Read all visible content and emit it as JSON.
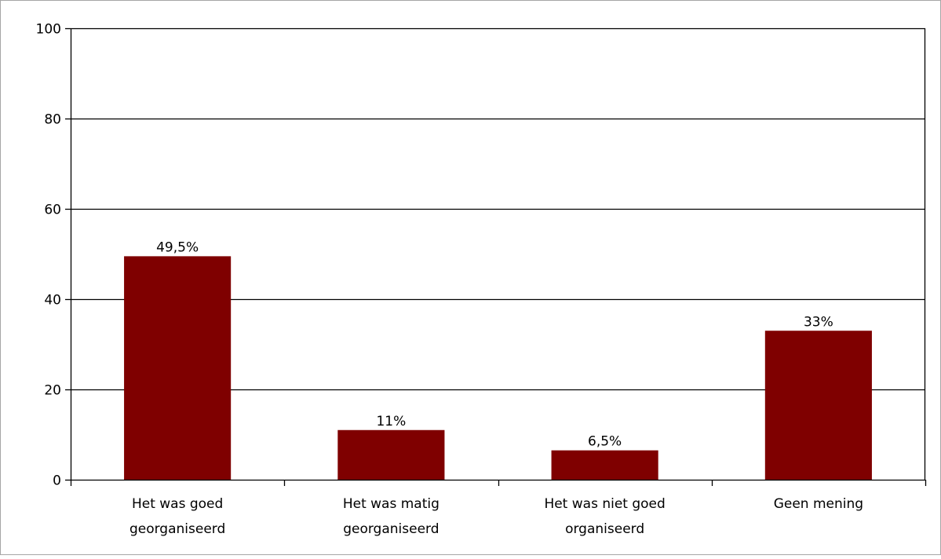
{
  "chart_data": {
    "type": "bar",
    "categories": [
      [
        "Het was goed",
        "georganiseerd"
      ],
      [
        "Het was matig",
        "georganiseerd"
      ],
      [
        "Het was niet goed",
        "organiseerd"
      ],
      [
        "Geen mening"
      ]
    ],
    "values": [
      49.5,
      11,
      6.5,
      33
    ],
    "data_labels": [
      "49,5%",
      "11%",
      "6,5%",
      "33%"
    ],
    "ylim": [
      0,
      100
    ],
    "y_ticks": [
      0,
      20,
      40,
      60,
      80,
      100
    ],
    "y_tick_labels": [
      "0",
      "20",
      "40",
      "60",
      "80",
      "100"
    ],
    "grid": true,
    "legend": "none",
    "bar_color": "#7f0000",
    "grid_color": "#000000",
    "frame_color": "#a6a6a6"
  }
}
